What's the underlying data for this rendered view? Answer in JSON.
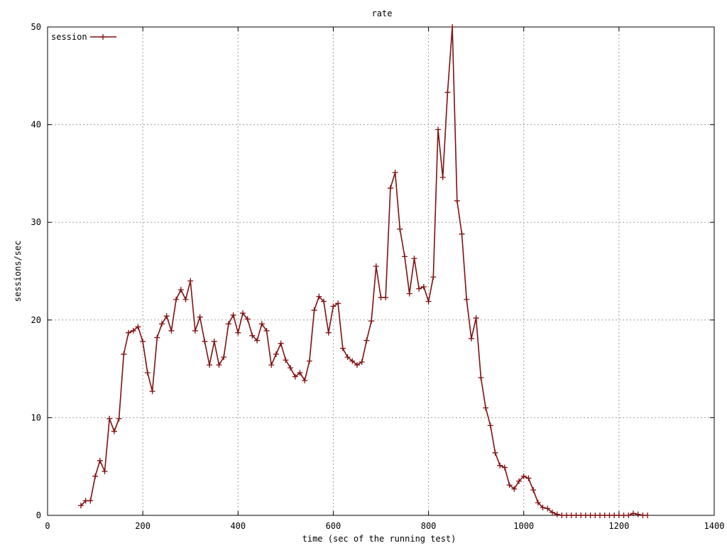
{
  "chart_data": {
    "type": "line",
    "title": "rate",
    "xlabel": "time (sec of the running test)",
    "ylabel": "sessions/sec",
    "xlim": [
      0,
      1400
    ],
    "ylim": [
      0,
      50
    ],
    "xticks": [
      0,
      200,
      400,
      600,
      800,
      1000,
      1200,
      1400
    ],
    "yticks": [
      0,
      10,
      20,
      30,
      40,
      50
    ],
    "xtick_labels": [
      "0",
      "200",
      "400",
      "600",
      "800",
      "1000",
      "1200",
      "1400"
    ],
    "ytick_labels": [
      "0",
      "10",
      "20",
      "30",
      "40",
      "50"
    ],
    "grid": true,
    "legend_position": "top-left",
    "series": [
      {
        "name": "session",
        "color": "#7f1010",
        "marker": "plus",
        "x": [
          70,
          80,
          90,
          100,
          110,
          120,
          130,
          140,
          150,
          160,
          170,
          180,
          190,
          200,
          210,
          220,
          230,
          240,
          250,
          260,
          270,
          280,
          290,
          300,
          310,
          320,
          330,
          340,
          350,
          360,
          370,
          380,
          390,
          400,
          410,
          420,
          430,
          440,
          450,
          460,
          470,
          480,
          490,
          500,
          510,
          520,
          530,
          540,
          550,
          560,
          570,
          580,
          590,
          600,
          610,
          620,
          630,
          640,
          650,
          660,
          670,
          680,
          690,
          700,
          710,
          720,
          730,
          740,
          750,
          760,
          770,
          780,
          790,
          800,
          810,
          820,
          830,
          840,
          850,
          860,
          870,
          880,
          890,
          900,
          910,
          920,
          930,
          940,
          950,
          960,
          970,
          980,
          990,
          1000,
          1010,
          1020,
          1030,
          1040,
          1050,
          1060,
          1070,
          1080,
          1090,
          1100,
          1110,
          1120,
          1130,
          1140,
          1150,
          1160,
          1170,
          1180,
          1190,
          1200,
          1210,
          1220,
          1230,
          1240,
          1250,
          1260
        ],
        "y": [
          1.0,
          1.5,
          1.5,
          4.0,
          5.6,
          4.5,
          9.9,
          8.6,
          9.9,
          16.5,
          18.7,
          18.9,
          19.3,
          17.8,
          14.6,
          12.7,
          18.2,
          19.6,
          20.4,
          18.9,
          22.1,
          23.1,
          22.1,
          24.0,
          18.9,
          20.3,
          17.8,
          15.4,
          17.8,
          15.4,
          16.2,
          19.6,
          20.5,
          18.7,
          20.7,
          20.1,
          18.4,
          17.9,
          19.6,
          18.9,
          15.4,
          16.5,
          17.6,
          15.9,
          15.1,
          14.2,
          14.6,
          13.8,
          15.8,
          21.0,
          22.4,
          21.9,
          18.7,
          21.4,
          21.7,
          17.1,
          16.2,
          15.8,
          15.4,
          15.7,
          17.9,
          19.9,
          25.5,
          22.3,
          22.3,
          33.5,
          35.1,
          29.3,
          26.5,
          22.7,
          26.3,
          23.2,
          23.4,
          21.9,
          24.4,
          39.5,
          34.6,
          43.3,
          50.0,
          32.2,
          28.8,
          22.1,
          18.1,
          20.2,
          14.1,
          11.0,
          9.2,
          6.4,
          5.1,
          4.9,
          3.1,
          2.7,
          3.5,
          4.0,
          3.8,
          2.6,
          1.3,
          0.8,
          0.7,
          0.3,
          0.1,
          0.0,
          0.0,
          0.0,
          0.0,
          0.0,
          0.0,
          0.0,
          0.0,
          0.0,
          0.0,
          0.0,
          0.0,
          0.0,
          0.0,
          0.0,
          0.2,
          0.1,
          0.0,
          0.0
        ]
      }
    ]
  }
}
